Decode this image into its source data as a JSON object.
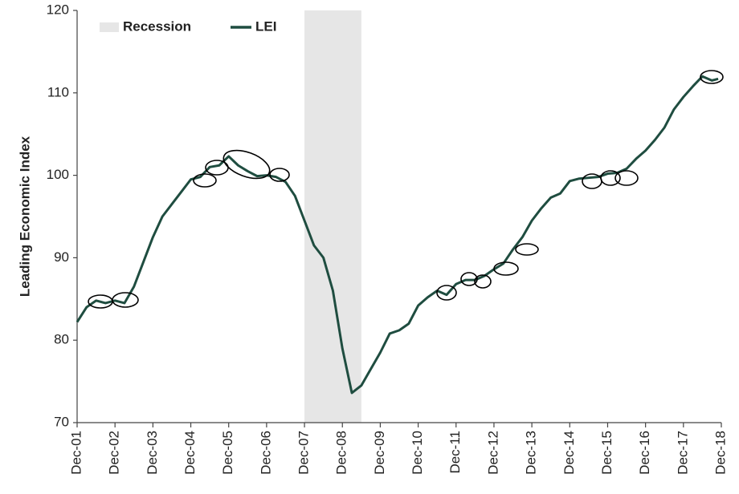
{
  "chart_data": {
    "type": "line",
    "y_label": "Leading Economic Index",
    "x": [
      "2001-12",
      "2002-03",
      "2002-06",
      "2002-09",
      "2002-12",
      "2003-03",
      "2003-06",
      "2003-09",
      "2003-12",
      "2004-03",
      "2004-06",
      "2004-09",
      "2004-12",
      "2005-03",
      "2005-06",
      "2005-09",
      "2005-12",
      "2006-03",
      "2006-06",
      "2006-09",
      "2006-12",
      "2007-03",
      "2007-06",
      "2007-09",
      "2007-12",
      "2008-03",
      "2008-06",
      "2008-09",
      "2008-12",
      "2009-03",
      "2009-06",
      "2009-09",
      "2009-12",
      "2010-03",
      "2010-06",
      "2010-09",
      "2010-12",
      "2011-03",
      "2011-06",
      "2011-09",
      "2011-12",
      "2012-03",
      "2012-06",
      "2012-09",
      "2012-12",
      "2013-03",
      "2013-06",
      "2013-09",
      "2013-12",
      "2014-03",
      "2014-06",
      "2014-09",
      "2014-12",
      "2015-03",
      "2015-06",
      "2015-09",
      "2015-12",
      "2016-03",
      "2016-06",
      "2016-09",
      "2016-12",
      "2017-03",
      "2017-06",
      "2017-09",
      "2017-12",
      "2018-03",
      "2018-06",
      "2018-09",
      "2018-11"
    ],
    "series": [
      {
        "name": "LEI",
        "color": "#1f4d40",
        "values": [
          82.2,
          84.0,
          84.8,
          84.5,
          84.8,
          84.5,
          86.5,
          89.5,
          92.5,
          95.0,
          96.5,
          98.0,
          99.5,
          99.8,
          101.0,
          101.2,
          102.3,
          101.2,
          100.5,
          99.9,
          100.0,
          99.8,
          99.2,
          97.5,
          94.5,
          91.5,
          90.0,
          86.0,
          79.0,
          73.6,
          74.5,
          76.5,
          78.5,
          80.8,
          81.2,
          82.0,
          84.2,
          85.2,
          86.0,
          85.5,
          86.8,
          87.3,
          87.3,
          87.8,
          88.6,
          89.3,
          91.0,
          92.5,
          94.5,
          96.0,
          97.3,
          97.8,
          99.3,
          99.6,
          99.7,
          99.8,
          100.2,
          100.3,
          100.8,
          102.0,
          103.0,
          104.3,
          105.8,
          108.0,
          109.5,
          110.8,
          112.0,
          111.5,
          111.7
        ]
      }
    ],
    "recession": {
      "name": "Recession",
      "color": "#e6e6e6",
      "start": "2007-12",
      "end": "2009-06"
    },
    "xlim": [
      "2001-12",
      "2018-12"
    ],
    "xticks": [
      {
        "value": "2001-12",
        "label": "Dec-01"
      },
      {
        "value": "2002-12",
        "label": "Dec-02"
      },
      {
        "value": "2003-12",
        "label": "Dec-03"
      },
      {
        "value": "2004-12",
        "label": "Dec-04"
      },
      {
        "value": "2005-12",
        "label": "Dec-05"
      },
      {
        "value": "2006-12",
        "label": "Dec-06"
      },
      {
        "value": "2007-12",
        "label": "Dec-07"
      },
      {
        "value": "2008-12",
        "label": "Dec-08"
      },
      {
        "value": "2009-12",
        "label": "Dec-09"
      },
      {
        "value": "2010-12",
        "label": "Dec-10"
      },
      {
        "value": "2011-12",
        "label": "Dec-11"
      },
      {
        "value": "2012-12",
        "label": "Dec-12"
      },
      {
        "value": "2013-12",
        "label": "Dec-13"
      },
      {
        "value": "2014-12",
        "label": "Dec-14"
      },
      {
        "value": "2015-12",
        "label": "Dec-15"
      },
      {
        "value": "2016-12",
        "label": "Dec-16"
      },
      {
        "value": "2017-12",
        "label": "Dec-17"
      },
      {
        "value": "2018-12",
        "label": "Dec-18"
      }
    ],
    "ylim": [
      70,
      120
    ],
    "yticks": [
      70,
      80,
      90,
      100,
      110,
      120
    ],
    "grid": false
  }
}
